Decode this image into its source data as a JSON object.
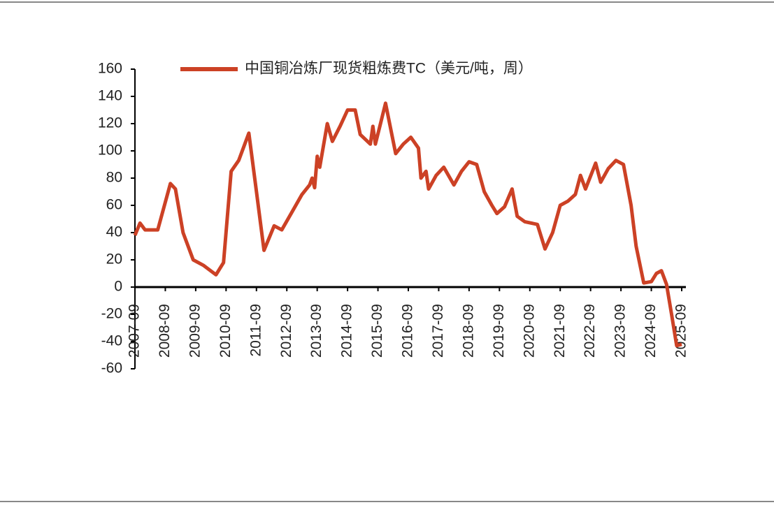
{
  "chart_data": {
    "type": "line",
    "x": [
      "2007-09",
      "2007-11",
      "2008-01",
      "2008-06",
      "2008-11",
      "2009-01",
      "2009-04",
      "2009-08",
      "2009-12",
      "2010-05",
      "2010-08",
      "2010-11",
      "2011-02",
      "2011-06",
      "2011-09",
      "2011-12",
      "2012-04",
      "2012-07",
      "2012-11",
      "2013-03",
      "2013-06",
      "2013-07",
      "2013-08",
      "2013-09",
      "2013-10",
      "2014-01",
      "2014-03",
      "2014-06",
      "2014-09",
      "2014-12",
      "2015-02",
      "2015-06",
      "2015-07",
      "2015-08",
      "2015-10",
      "2015-12",
      "2016-04",
      "2016-07",
      "2016-10",
      "2017-01",
      "2017-02",
      "2017-04",
      "2017-05",
      "2017-08",
      "2017-11",
      "2018-03",
      "2018-06",
      "2018-09",
      "2018-12",
      "2019-03",
      "2019-06",
      "2019-08",
      "2019-11",
      "2020-02",
      "2020-04",
      "2020-07",
      "2020-12",
      "2021-03",
      "2021-06",
      "2021-09",
      "2021-12",
      "2022-03",
      "2022-05",
      "2022-07",
      "2022-11",
      "2023-01",
      "2023-04",
      "2023-07",
      "2023-10",
      "2024-01",
      "2024-03",
      "2024-06",
      "2024-09",
      "2024-11",
      "2025-01",
      "2025-03",
      "2025-05",
      "2025-07",
      "2025-09"
    ],
    "series": [
      {
        "name": "中国铜冶炼厂现货粗炼费TC（美元/吨，周）",
        "color": "#cc4125",
        "values": [
          38,
          47,
          42,
          42,
          76,
          72,
          40,
          20,
          16,
          9,
          18,
          85,
          93,
          113,
          70,
          27,
          45,
          42,
          55,
          68,
          75,
          80,
          73,
          96,
          88,
          120,
          107,
          118,
          130,
          130,
          112,
          105,
          118,
          105,
          120,
          135,
          98,
          105,
          110,
          102,
          80,
          85,
          72,
          82,
          88,
          75,
          85,
          92,
          90,
          70,
          60,
          54,
          59,
          72,
          52,
          48,
          46,
          28,
          40,
          60,
          63,
          68,
          82,
          72,
          91,
          77,
          87,
          93,
          90,
          60,
          30,
          3,
          4,
          10,
          12,
          2,
          -20,
          -43,
          -42
        ]
      }
    ],
    "xlim": [
      "2007-09",
      "2025-09"
    ],
    "xticks": [
      "2007-09",
      "2008-09",
      "2009-09",
      "2010-09",
      "2011-09",
      "2012-09",
      "2013-09",
      "2014-09",
      "2015-09",
      "2016-09",
      "2017-09",
      "2018-09",
      "2019-09",
      "2020-09",
      "2021-09",
      "2022-09",
      "2023-09",
      "2024-09",
      "2025-09"
    ],
    "ylim": [
      -60,
      160
    ],
    "yticks": [
      -60,
      -40,
      -20,
      0,
      20,
      40,
      60,
      80,
      100,
      120,
      140,
      160
    ],
    "legend": "top"
  }
}
